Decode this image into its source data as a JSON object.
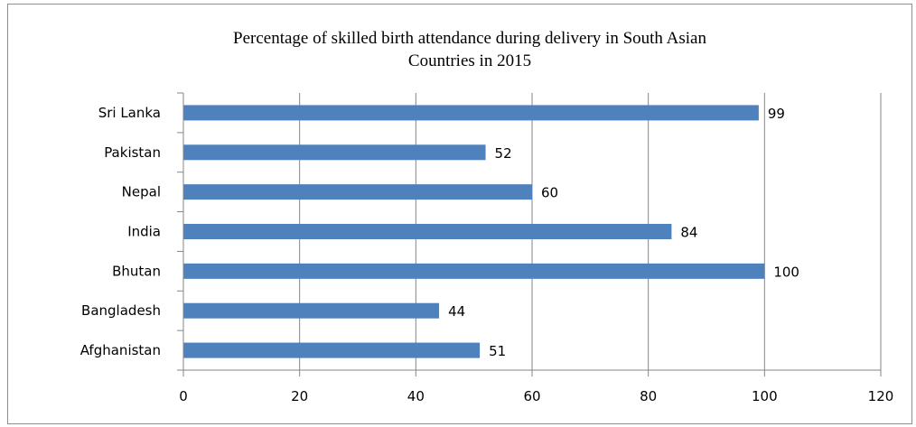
{
  "chart_data": {
    "type": "bar",
    "orientation": "horizontal",
    "title": "Percentage of skilled birth attendance during delivery in South Asian\nCountries in 2015",
    "categories": [
      "Sri Lanka",
      "Pakistan",
      "Nepal",
      "India",
      "Bhutan",
      "Bangladesh",
      "Afghanistan"
    ],
    "values": [
      99,
      52,
      60,
      84,
      100,
      44,
      51
    ],
    "data_labels": [
      "99",
      "52",
      "60",
      "84",
      "100",
      "44",
      "51"
    ],
    "x_ticks": [
      "0",
      "20",
      "40",
      "60",
      "80",
      "100",
      "120"
    ],
    "xlim": [
      0,
      120
    ],
    "xlabel": "",
    "ylabel": "",
    "grid": "vertical",
    "legend": "none",
    "bar_color": "#4f81bd",
    "grid_color": "#868686"
  }
}
